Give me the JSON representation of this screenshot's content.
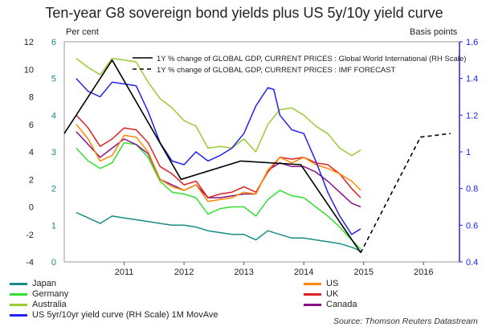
{
  "chart_data": {
    "type": "line",
    "title": "Ten-year G8 sovereign bond yields plus US 5y/10y yield curve",
    "left_axis_title": "Per cent",
    "right_axis_title": "Basis points",
    "ylim_left": [
      -4,
      12
    ],
    "ylim_right": [
      0.4,
      1.6
    ],
    "y2lim_right_blue": [
      0.4,
      1.6
    ],
    "x_ticks": [
      "2011",
      "2012",
      "2013",
      "2014",
      "2015",
      "2016"
    ],
    "y_ticks_outer": [
      "12",
      "10",
      "8",
      "6",
      "4",
      "2",
      "0",
      "-2",
      "-4"
    ],
    "y_ticks_inner": [
      "6",
      "5",
      "4",
      "3",
      "2",
      "1",
      "0"
    ],
    "y_ticks_right": [
      "1.6",
      "1.4",
      "1.2",
      "1",
      "0.8",
      "0.6",
      "0.4"
    ],
    "colors": {
      "japan": "#1a8c87",
      "germany": "#33dd33",
      "australia": "#99cc33",
      "us_curve": "#2222ee",
      "us": "#ff8800",
      "uk": "#dd2222",
      "canada": "#881188",
      "gdp": "#000000",
      "right_axis": "#2222ee"
    },
    "series": [
      {
        "name": "Japan",
        "key": "japan",
        "axis": "left",
        "x": [
          2010.2,
          2010.4,
          2010.6,
          2010.8,
          2011.0,
          2011.2,
          2011.4,
          2011.6,
          2011.8,
          2012.0,
          2012.2,
          2012.4,
          2012.6,
          2012.8,
          2013.0,
          2013.2,
          2013.4,
          2013.6,
          2013.8,
          2014.0,
          2014.2,
          2014.4,
          2014.6,
          2014.8,
          2014.95
        ],
        "values": [
          1.35,
          1.2,
          1.05,
          1.25,
          1.2,
          1.15,
          1.1,
          1.05,
          1.0,
          1.0,
          0.95,
          0.85,
          0.8,
          0.75,
          0.75,
          0.6,
          0.85,
          0.75,
          0.65,
          0.65,
          0.6,
          0.55,
          0.5,
          0.4,
          0.3
        ]
      },
      {
        "name": "Germany",
        "key": "germany",
        "axis": "left",
        "x": [
          2010.2,
          2010.4,
          2010.6,
          2010.8,
          2011.0,
          2011.2,
          2011.4,
          2011.6,
          2011.8,
          2012.0,
          2012.2,
          2012.4,
          2012.6,
          2012.8,
          2013.0,
          2013.2,
          2013.4,
          2013.6,
          2013.8,
          2014.0,
          2014.2,
          2014.4,
          2014.6,
          2014.8,
          2014.95
        ],
        "values": [
          3.1,
          2.75,
          2.55,
          2.7,
          3.25,
          3.2,
          2.85,
          2.2,
          1.9,
          1.85,
          1.75,
          1.3,
          1.45,
          1.5,
          1.5,
          1.25,
          1.7,
          1.95,
          1.8,
          1.75,
          1.5,
          1.25,
          0.95,
          0.6,
          0.35
        ]
      },
      {
        "name": "Australia",
        "key": "australia",
        "axis": "left",
        "x": [
          2010.2,
          2010.4,
          2010.6,
          2010.8,
          2011.0,
          2011.2,
          2011.4,
          2011.6,
          2011.8,
          2012.0,
          2012.2,
          2012.4,
          2012.6,
          2012.8,
          2013.0,
          2013.2,
          2013.4,
          2013.6,
          2013.8,
          2014.0,
          2014.2,
          2014.4,
          2014.6,
          2014.8,
          2014.95
        ],
        "values": [
          5.55,
          5.3,
          5.1,
          5.55,
          5.5,
          5.45,
          4.9,
          4.45,
          4.2,
          3.85,
          3.7,
          3.1,
          3.15,
          3.1,
          3.35,
          3.0,
          3.75,
          4.15,
          4.2,
          4.0,
          3.7,
          3.5,
          3.1,
          2.9,
          3.05
        ]
      },
      {
        "name": "US",
        "key": "us",
        "axis": "left",
        "x": [
          2010.2,
          2010.4,
          2010.6,
          2010.8,
          2011.0,
          2011.2,
          2011.4,
          2011.6,
          2011.8,
          2012.0,
          2012.2,
          2012.4,
          2012.6,
          2012.8,
          2013.0,
          2013.2,
          2013.4,
          2013.6,
          2013.8,
          2014.0,
          2014.2,
          2014.4,
          2014.6,
          2014.8,
          2014.95
        ],
        "values": [
          3.75,
          3.35,
          2.75,
          2.9,
          3.45,
          3.4,
          3.0,
          2.25,
          2.05,
          1.95,
          2.1,
          1.65,
          1.7,
          1.75,
          1.9,
          1.85,
          2.5,
          2.85,
          2.7,
          2.85,
          2.65,
          2.55,
          2.4,
          2.2,
          1.95
        ]
      },
      {
        "name": "UK",
        "key": "uk",
        "axis": "left",
        "x": [
          2010.2,
          2010.4,
          2010.6,
          2010.8,
          2011.0,
          2011.2,
          2011.4,
          2011.6,
          2011.8,
          2012.0,
          2012.2,
          2012.4,
          2012.6,
          2012.8,
          2013.0,
          2013.2,
          2013.4,
          2013.6,
          2013.8,
          2014.0,
          2014.2,
          2014.4,
          2014.6,
          2014.8,
          2014.95
        ],
        "values": [
          4.0,
          3.65,
          3.15,
          3.35,
          3.65,
          3.6,
          3.25,
          2.6,
          2.4,
          2.1,
          2.2,
          1.75,
          1.85,
          1.9,
          2.05,
          1.9,
          2.45,
          2.85,
          2.8,
          2.85,
          2.7,
          2.65,
          2.4,
          2.0,
          1.75
        ]
      },
      {
        "name": "Canada",
        "key": "canada",
        "axis": "left",
        "x": [
          2010.2,
          2010.4,
          2010.6,
          2010.8,
          2011.0,
          2011.2,
          2011.4,
          2011.6,
          2011.8,
          2012.0,
          2012.2,
          2012.4,
          2012.6,
          2012.8,
          2013.0,
          2013.2,
          2013.4,
          2013.6,
          2013.8,
          2014.0,
          2014.2,
          2014.4,
          2014.6,
          2014.8,
          2014.95
        ],
        "values": [
          3.55,
          3.2,
          2.85,
          3.1,
          3.35,
          3.2,
          2.95,
          2.25,
          2.1,
          1.95,
          2.1,
          1.75,
          1.75,
          1.8,
          1.85,
          1.85,
          2.5,
          2.7,
          2.6,
          2.6,
          2.45,
          2.2,
          1.9,
          1.6,
          1.5
        ]
      },
      {
        "name": "US 5yr/10yr yield curve (RH Scale) 1M MovAve",
        "key": "us_curve",
        "axis": "right",
        "x": [
          2010.2,
          2010.4,
          2010.6,
          2010.8,
          2011.0,
          2011.2,
          2011.4,
          2011.6,
          2011.8,
          2012.0,
          2012.2,
          2012.4,
          2012.6,
          2012.8,
          2013.0,
          2013.2,
          2013.4,
          2013.5,
          2013.6,
          2013.8,
          2014.0,
          2014.2,
          2014.4,
          2014.6,
          2014.8,
          2014.95
        ],
        "values": [
          1.4,
          1.33,
          1.3,
          1.38,
          1.37,
          1.36,
          1.22,
          1.05,
          0.95,
          0.93,
          1.0,
          0.95,
          0.98,
          1.02,
          1.1,
          1.25,
          1.35,
          1.34,
          1.2,
          1.12,
          1.1,
          0.95,
          0.78,
          0.65,
          0.55,
          0.58
        ]
      },
      {
        "name": "1Y % change of GLOBAL GDP, CURRENT PRICES : Global World International (RH Scale)",
        "key": "gdp",
        "axis": "right",
        "x": [
          2010.0,
          2010.8,
          2011.95,
          2012.95,
          2013.95,
          2014.95
        ],
        "values": [
          1.1,
          1.5,
          0.85,
          0.95,
          0.93,
          0.45
        ]
      },
      {
        "name": "1Y % change of GLOBAL GDP, CURRENT PRICES : IMF FORECAST",
        "key": "gdp_forecast",
        "axis": "right",
        "dashed": true,
        "x": [
          2014.95,
          2015.95,
          2016.45
        ],
        "values": [
          0.45,
          1.08,
          1.1
        ]
      }
    ],
    "legend_left": [
      "Japan",
      "Germany",
      "Australia",
      "US 5yr/10yr yield curve (RH Scale) 1M MovAve"
    ],
    "legend_right": [
      "US",
      "UK",
      "Canada"
    ],
    "source": "Source: Thomson Reuters Datastream"
  }
}
